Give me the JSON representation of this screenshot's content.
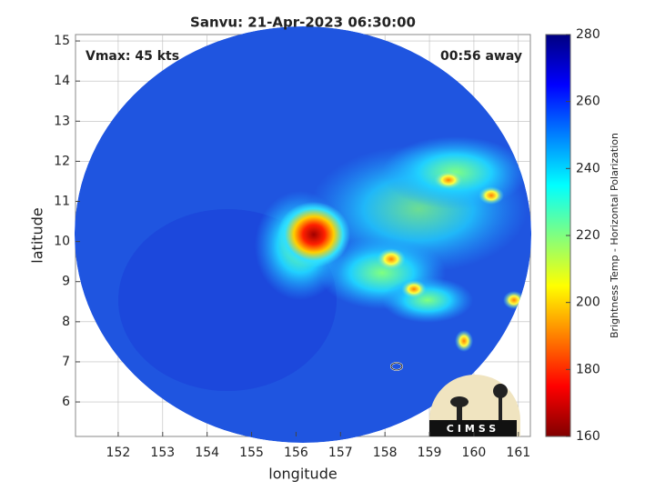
{
  "chart_data": {
    "type": "image",
    "title": "Sanvu: 21-Apr-2023 06:30:00",
    "xlabel": "longitude",
    "ylabel": "latitude",
    "annotations": [
      "Vmax: 45 kts",
      "00:56 away"
    ],
    "logo_text": "CIMSS",
    "xlim": [
      151.04,
      161.27
    ],
    "xticks": [
      152,
      153,
      154,
      155,
      156,
      157,
      158,
      159,
      160,
      161
    ],
    "ylim": [
      5.14,
      15.16
    ],
    "yticks": [
      6,
      7,
      8,
      9,
      10,
      11,
      12,
      13,
      14,
      15
    ],
    "grid": true,
    "colorbar": {
      "label": "Brightness Temp - Horizontal Polarization",
      "lim": [
        160,
        280
      ],
      "ticks": [
        160,
        180,
        200,
        220,
        240,
        260,
        280
      ],
      "colormap": [
        "#800000",
        "#ff0000",
        "#ff8000",
        "#ffff00",
        "#80ff80",
        "#00ffff",
        "#0080ff",
        "#0000ff",
        "#000080"
      ]
    }
  }
}
